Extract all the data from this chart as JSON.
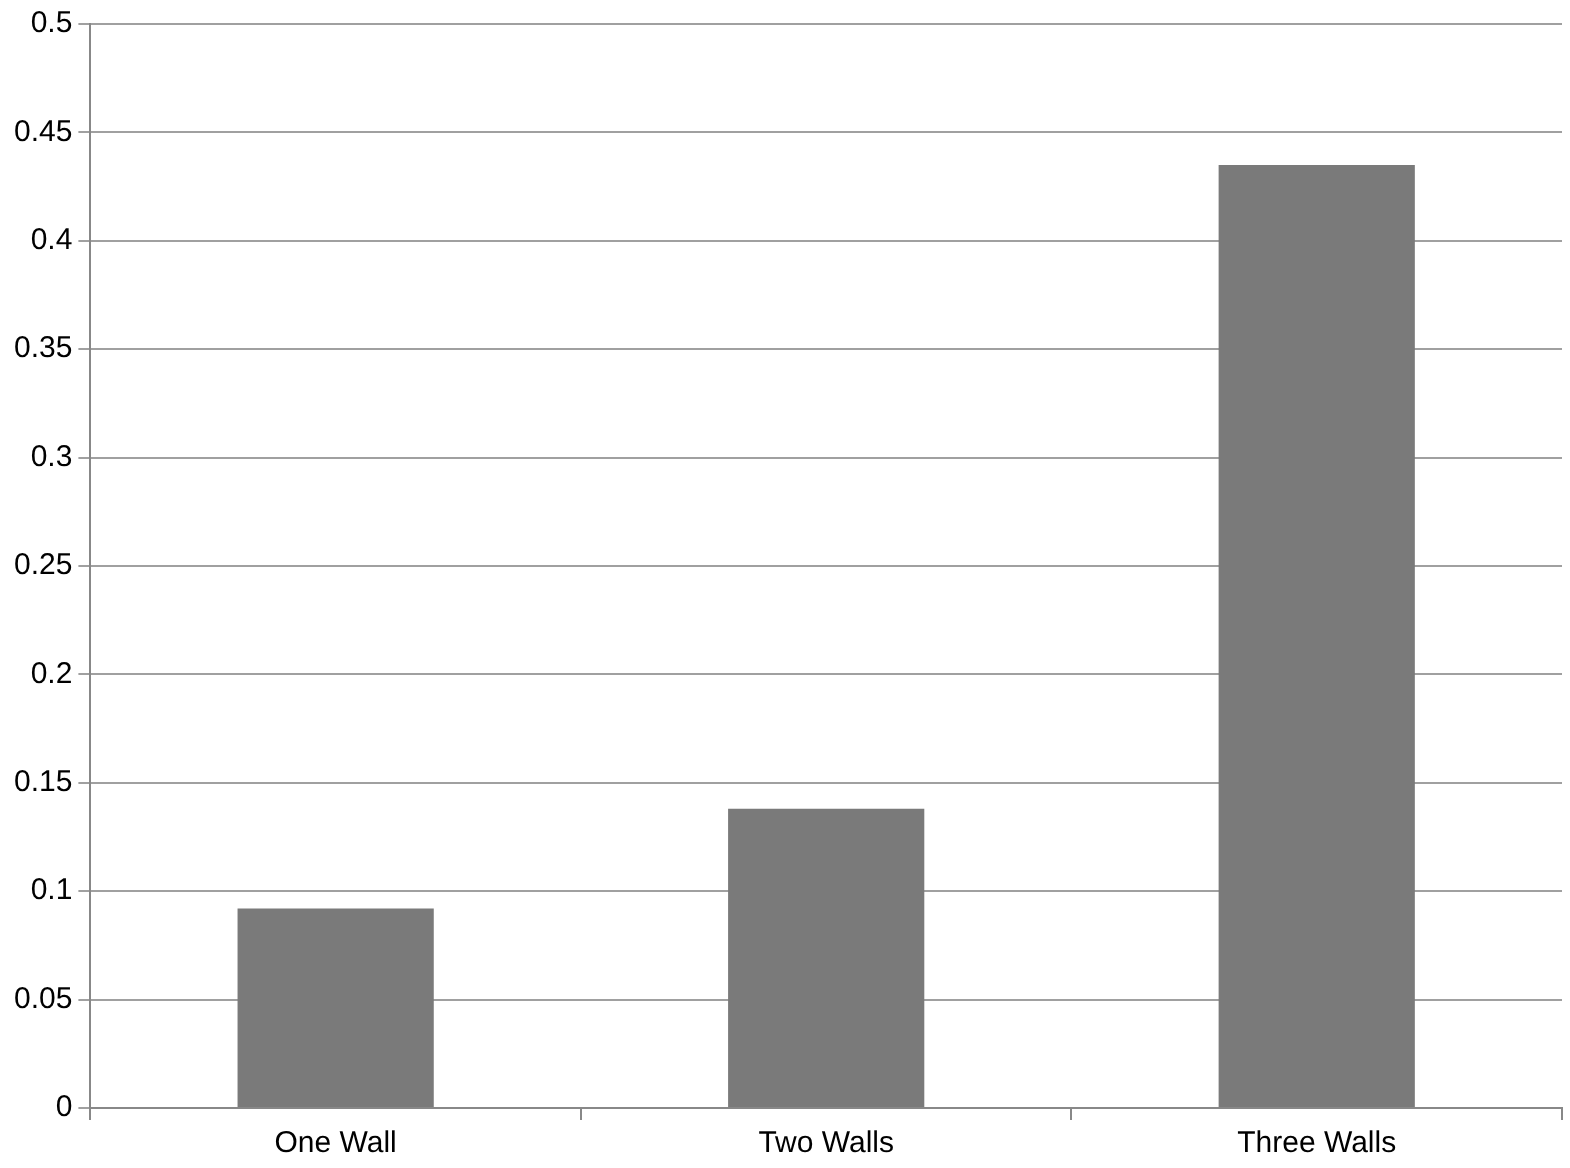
{
  "chart_data": {
    "type": "bar",
    "categories": [
      "One Wall",
      "Two Walls",
      "Three Walls"
    ],
    "values": [
      0.092,
      0.138,
      0.435
    ],
    "color": "#7a7a7a",
    "ylim": [
      0,
      0.5
    ],
    "yticks": [
      0,
      0.05,
      0.1,
      0.15,
      0.2,
      0.25,
      0.3,
      0.35,
      0.4,
      0.45,
      0.5
    ],
    "grid": "y",
    "legend": false
  }
}
